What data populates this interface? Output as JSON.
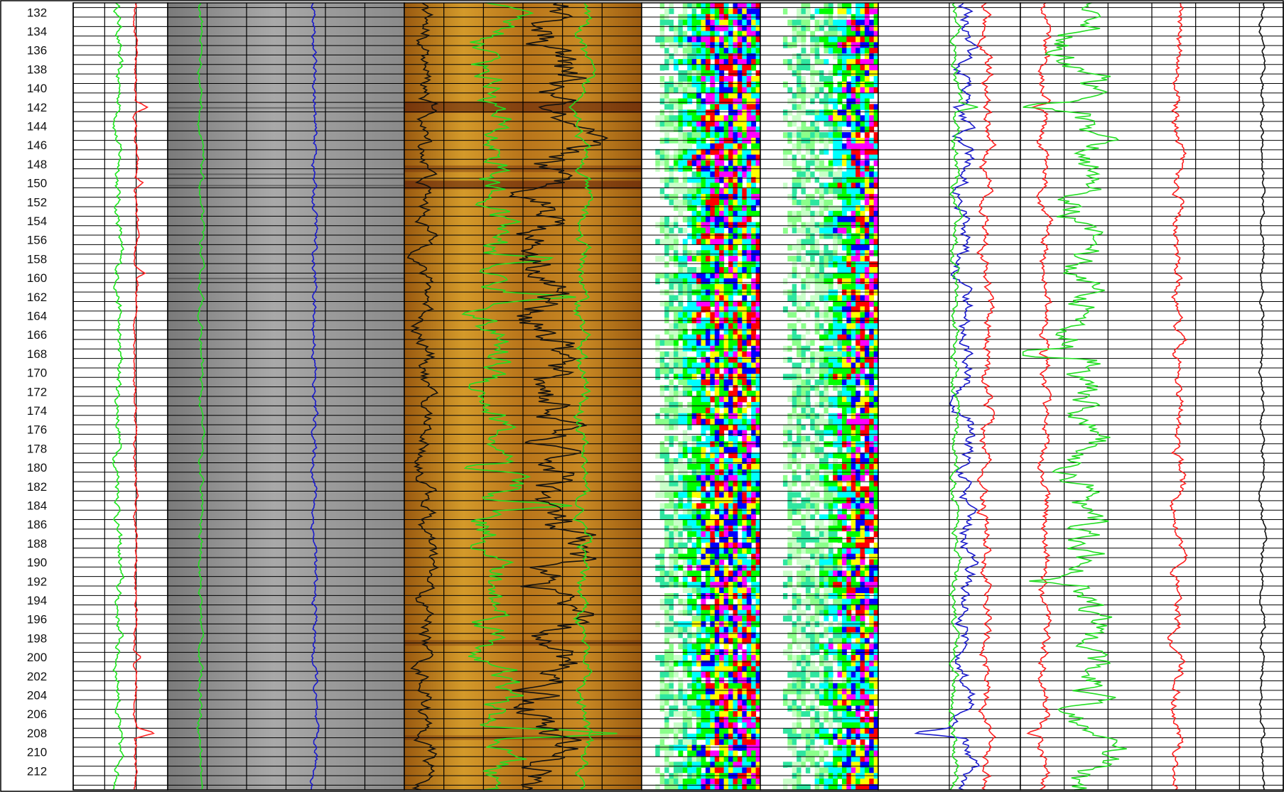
{
  "chart_data": {
    "type": "line",
    "depth_axis": {
      "ticks": [
        132,
        134,
        136,
        138,
        140,
        142,
        144,
        146,
        148,
        150,
        152,
        154,
        156,
        158,
        160,
        162,
        164,
        166,
        168,
        170,
        172,
        174,
        176,
        178,
        180,
        182,
        184,
        186,
        188,
        190,
        192,
        194,
        196,
        198,
        200,
        202,
        204,
        206,
        208,
        210,
        212
      ],
      "range": [
        131,
        214
      ]
    },
    "tracks": [
      {
        "name": "",
        "kind": "curves",
        "background": "#ffffff",
        "curves": [
          {
            "name": "",
            "color": "#1ee61e",
            "base": 0.48,
            "amp": 0.04,
            "spikes": []
          },
          {
            "name": "",
            "color": "#ff2020",
            "base": 0.66,
            "amp": 0.02,
            "spikes": [
              [
                142.0,
                0.12
              ],
              [
                150.0,
                0.08
              ],
              [
                159.5,
                0.08
              ],
              [
                200.0,
                0.08
              ],
              [
                208.0,
                0.2
              ]
            ]
          }
        ]
      },
      {
        "name": "",
        "kind": "image",
        "background": "#8f8f8f",
        "curves": [
          {
            "name": "",
            "color": "#22dd22",
            "base": 0.14,
            "amp": 0.01,
            "spikes": []
          },
          {
            "name": "",
            "color": "#1a1acc",
            "base": 0.62,
            "amp": 0.012,
            "spikes": []
          }
        ]
      },
      {
        "name": "",
        "kind": "image",
        "background": "#b8741a",
        "curves": [
          {
            "name": "",
            "color": "#111111",
            "base": 0.09,
            "amp": 0.04,
            "spikes": []
          },
          {
            "name": "",
            "color": "#22dd22",
            "base": 0.38,
            "amp": 0.09,
            "spikes": [
              [
                158.0,
                0.25
              ],
              [
                162.0,
                0.3
              ],
              [
                180.0,
                -0.25
              ],
              [
                184.0,
                0.3
              ],
              [
                208.0,
                0.5
              ]
            ]
          },
          {
            "name": "",
            "color": "#111111",
            "base": 0.62,
            "amp": 0.12,
            "spikes": []
          },
          {
            "name": "",
            "color": "#22dd22",
            "base": 0.75,
            "amp": 0.03,
            "spikes": []
          }
        ]
      },
      {
        "name": "",
        "kind": "spectral",
        "background": "#ffffff",
        "curves": []
      },
      {
        "name": "",
        "kind": "spectral",
        "background": "#ffffff",
        "curves": []
      },
      {
        "name": "",
        "kind": "curves",
        "background": "#ffffff",
        "curves": [
          {
            "name": "",
            "color": "#1a1acc",
            "base": 0.62,
            "amp": 0.06,
            "spikes": [
              [
                142.0,
                -0.15
              ],
              [
                208.0,
                -0.35
              ]
            ]
          },
          {
            "name": "",
            "color": "#22dd22",
            "base": 0.54,
            "amp": 0.03,
            "spikes": [
              [
                142.0,
                0.18
              ]
            ]
          },
          {
            "name": "",
            "color": "#ff2020",
            "base": 0.76,
            "amp": 0.04,
            "spikes": []
          }
        ]
      },
      {
        "name": "",
        "kind": "curves",
        "background": "#ffffff",
        "curves": [
          {
            "name": "",
            "color": "#ff2020",
            "base": 0.09,
            "amp": 0.02,
            "spikes": [
              [
                142.0,
                -0.05
              ],
              [
                168.0,
                -0.03
              ],
              [
                208.0,
                -0.05
              ]
            ]
          },
          {
            "name": "",
            "color": "#22dd22",
            "base": 0.25,
            "amp": 0.09,
            "spikes": [
              [
                142.0,
                -0.25
              ],
              [
                168.0,
                -0.3
              ],
              [
                192.0,
                -0.15
              ]
            ]
          },
          {
            "name": "",
            "color": "#ff2020",
            "base": 0.6,
            "amp": 0.02,
            "spikes": []
          },
          {
            "name": "",
            "color": "#111111",
            "base": 0.92,
            "amp": 0.008,
            "spikes": []
          }
        ]
      }
    ]
  }
}
